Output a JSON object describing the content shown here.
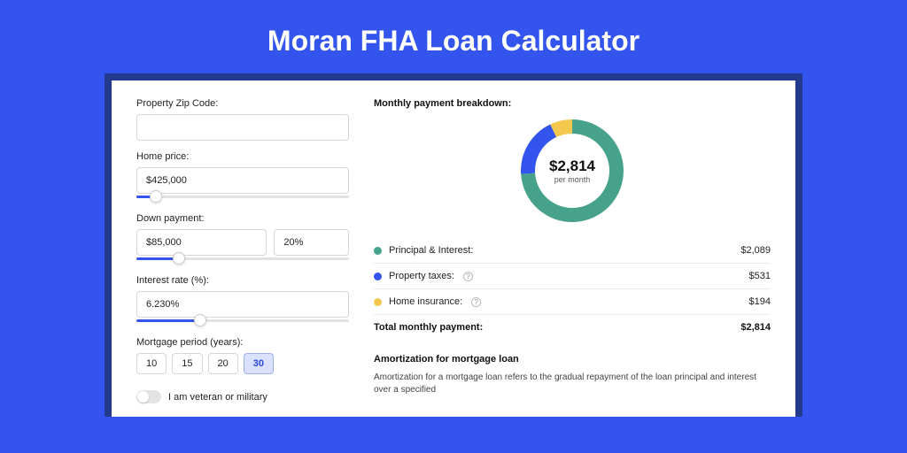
{
  "title": "Moran FHA Loan Calculator",
  "colors": {
    "page_bg": "#3355ee",
    "outer_card_bg": "#233a8f",
    "card_bg": "#ffffff"
  },
  "form": {
    "zip": {
      "label": "Property Zip Code:",
      "value": ""
    },
    "price": {
      "label": "Home price:",
      "value": "$425,000",
      "slider_pct": 9
    },
    "down": {
      "label": "Down payment:",
      "value": "$85,000",
      "pct_value": "20%",
      "slider_pct": 20
    },
    "rate": {
      "label": "Interest rate (%):",
      "value": "6.230%",
      "slider_pct": 30
    },
    "period": {
      "label": "Mortgage period (years):",
      "options": [
        "10",
        "15",
        "20",
        "30"
      ],
      "active": "30"
    },
    "veteran": {
      "label": "I am veteran or military",
      "on": false
    }
  },
  "breakdown": {
    "heading": "Monthly payment breakdown:",
    "donut": {
      "value": "$2,814",
      "sub": "per month",
      "slices": [
        {
          "key": "principal",
          "pct": 74,
          "color": "#46a28a"
        },
        {
          "key": "taxes",
          "pct": 19,
          "color": "#3355ee"
        },
        {
          "key": "insurance",
          "pct": 7,
          "color": "#f3c84d"
        }
      ],
      "ring_width": 16
    },
    "items": [
      {
        "label": "Principal & Interest:",
        "value": "$2,089",
        "color": "#46a28a",
        "help": false
      },
      {
        "label": "Property taxes:",
        "value": "$531",
        "color": "#3355ee",
        "help": true
      },
      {
        "label": "Home insurance:",
        "value": "$194",
        "color": "#f3c84d",
        "help": true
      }
    ],
    "total": {
      "label": "Total monthly payment:",
      "value": "$2,814"
    }
  },
  "amortization": {
    "heading": "Amortization for mortgage loan",
    "body": "Amortization for a mortgage loan refers to the gradual repayment of the loan principal and interest over a specified"
  }
}
